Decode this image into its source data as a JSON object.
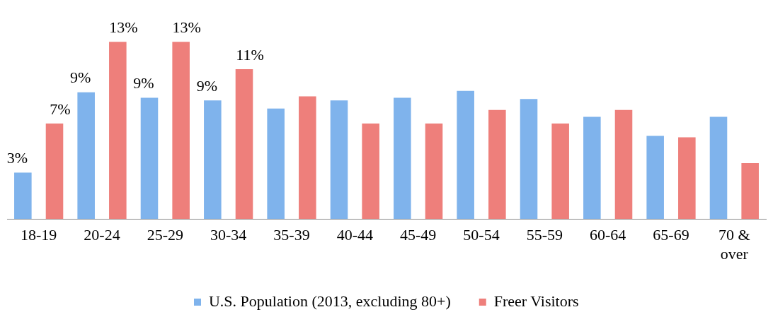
{
  "chart_data": {
    "type": "bar",
    "categories": [
      "18-19",
      "20-24",
      "25-29",
      "30-34",
      "35-39",
      "40-44",
      "45-49",
      "50-54",
      "55-59",
      "60-64",
      "65-69",
      "70 & over"
    ],
    "series": [
      {
        "name": "U.S. Population (2013, excluding 80+)",
        "color": "#7fb3ec",
        "values": [
          3.4,
          9.3,
          8.9,
          8.7,
          8.1,
          8.7,
          8.9,
          9.4,
          8.8,
          7.5,
          6.1,
          7.5
        ],
        "value_labels": [
          "3%",
          "9%",
          "9%",
          "9%",
          null,
          null,
          null,
          null,
          null,
          null,
          null,
          null
        ]
      },
      {
        "name": "Freer Visitors",
        "color": "#ee7f7b",
        "values": [
          7.0,
          13.0,
          13.0,
          11.0,
          9.0,
          7.0,
          7.0,
          8.0,
          7.0,
          8.0,
          6.0,
          4.1
        ],
        "value_labels": [
          "7%",
          "13%",
          "13%",
          "11%",
          null,
          null,
          null,
          null,
          null,
          null,
          null,
          null
        ]
      }
    ],
    "legend": "bottom",
    "grid": false,
    "tick_labels": "x"
  }
}
